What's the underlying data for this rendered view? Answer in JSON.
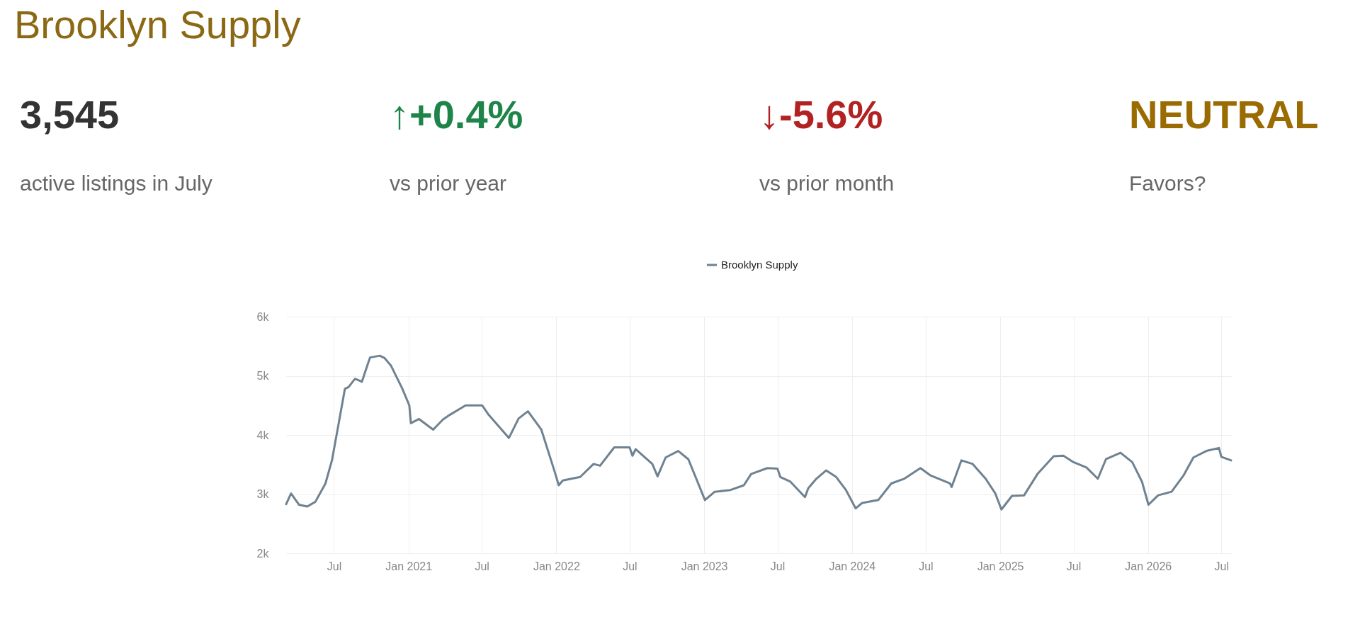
{
  "chart_data": {
    "type": "line",
    "title": "Brooklyn Supply",
    "annotations": [
      "3,545",
      "active listings in July",
      "↑+0.4%",
      "vs prior year",
      "↓-5.6%",
      "vs prior month",
      "NEUTRAL",
      "Favors?"
    ],
    "legend": "top",
    "grid": true,
    "xlim": [
      "2020-03-05",
      "2026-07-25"
    ],
    "xticks": [
      {
        "value": "2020-07",
        "label": "Jul"
      },
      {
        "value": "2021-01",
        "label": "Jan 2021"
      },
      {
        "value": "2021-07",
        "label": "Jul"
      },
      {
        "value": "2022-01",
        "label": "Jan 2022"
      },
      {
        "value": "2022-07",
        "label": "Jul"
      },
      {
        "value": "2023-01",
        "label": "Jan 2023"
      },
      {
        "value": "2023-07",
        "label": "Jul"
      },
      {
        "value": "2024-01",
        "label": "Jan 2024"
      },
      {
        "value": "2024-07",
        "label": "Jul"
      },
      {
        "value": "2025-01",
        "label": "Jan 2025"
      },
      {
        "value": "2025-07",
        "label": "Jul"
      },
      {
        "value": "2026-01",
        "label": "Jan 2026"
      },
      {
        "value": "2026-07",
        "label": "Jul"
      }
    ],
    "ylim": [
      2000,
      6000
    ],
    "yticks": [
      {
        "value": 2000,
        "label": "2k"
      },
      {
        "value": 3000,
        "label": "3k"
      },
      {
        "value": 4000,
        "label": "4k"
      },
      {
        "value": 5000,
        "label": "5k"
      },
      {
        "value": 6000,
        "label": "6k"
      }
    ],
    "series": [
      {
        "name": "Brooklyn Supply",
        "color": "#6f8291",
        "x": [
          "2020-03-05",
          "2020-03-17",
          "2020-04-06",
          "2020-04-26",
          "2020-05-16",
          "2020-06-10",
          "2020-06-26",
          "2020-07-12",
          "2020-07-28",
          "2020-08-06",
          "2020-08-22",
          "2020-09-08",
          "2020-09-28",
          "2020-10-22",
          "2020-11-03",
          "2020-11-19",
          "2020-12-17",
          "2021-01-03",
          "2021-01-07",
          "2021-01-27",
          "2021-03-03",
          "2021-03-27",
          "2021-04-13",
          "2021-05-22",
          "2021-07-02",
          "2021-07-18",
          "2021-09-06",
          "2021-09-30",
          "2021-10-23",
          "2021-11-25",
          "2021-12-27",
          "2022-01-07",
          "2022-01-17",
          "2022-03-01",
          "2022-04-03",
          "2022-04-19",
          "2022-05-24",
          "2022-07-01",
          "2022-07-08",
          "2022-07-16",
          "2022-08-26",
          "2022-09-08",
          "2022-09-28",
          "2022-10-29",
          "2022-11-23",
          "2023-01-03",
          "2023-01-27",
          "2023-03-07",
          "2023-04-09",
          "2023-04-27",
          "2023-06-06",
          "2023-07-01",
          "2023-07-08",
          "2023-08-02",
          "2023-09-07",
          "2023-09-15",
          "2023-10-05",
          "2023-10-29",
          "2023-11-23",
          "2023-12-17",
          "2024-01-10",
          "2024-01-26",
          "2024-03-06",
          "2024-04-07",
          "2024-05-09",
          "2024-06-18",
          "2024-07-12",
          "2024-08-30",
          "2024-09-03",
          "2024-09-27",
          "2024-10-25",
          "2024-11-26",
          "2024-12-20",
          "2025-01-04",
          "2025-01-30",
          "2025-03-01",
          "2025-04-03",
          "2025-05-13",
          "2025-06-06",
          "2025-07-01",
          "2025-08-02",
          "2025-08-30",
          "2025-09-19",
          "2025-10-25",
          "2025-11-23",
          "2025-12-17",
          "2026-01-02",
          "2026-01-26",
          "2026-02-28",
          "2026-03-30",
          "2026-04-23",
          "2026-05-25",
          "2026-06-25",
          "2026-07-01",
          "2026-07-25"
        ],
        "values": [
          2830,
          3010,
          2820,
          2790,
          2870,
          3180,
          3570,
          4170,
          4780,
          4810,
          4950,
          4900,
          5310,
          5340,
          5300,
          5170,
          4780,
          4500,
          4200,
          4270,
          4090,
          4260,
          4340,
          4500,
          4500,
          4340,
          3950,
          4280,
          4400,
          4090,
          3400,
          3150,
          3230,
          3290,
          3510,
          3480,
          3790,
          3790,
          3650,
          3760,
          3510,
          3300,
          3620,
          3730,
          3590,
          2900,
          3040,
          3070,
          3150,
          3340,
          3440,
          3430,
          3290,
          3210,
          2950,
          3100,
          3260,
          3400,
          3290,
          3070,
          2760,
          2850,
          2900,
          3180,
          3260,
          3440,
          3320,
          3180,
          3120,
          3570,
          3510,
          3260,
          3010,
          2740,
          2970,
          2980,
          3340,
          3640,
          3650,
          3540,
          3450,
          3260,
          3590,
          3700,
          3540,
          3210,
          2820,
          2980,
          3040,
          3320,
          3620,
          3730,
          3780,
          3630,
          3570
        ]
      }
    ]
  }
}
